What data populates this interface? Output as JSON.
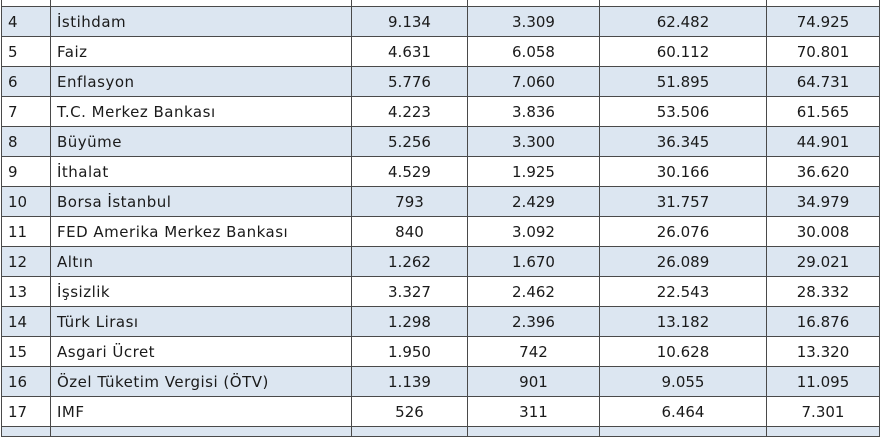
{
  "table": {
    "rows": [
      {
        "rank": "4",
        "topic": "İstihdam",
        "c1": "9.134",
        "c2": "3.309",
        "c3": "62.482",
        "c4": "74.925"
      },
      {
        "rank": "5",
        "topic": "Faiz",
        "c1": "4.631",
        "c2": "6.058",
        "c3": "60.112",
        "c4": "70.801"
      },
      {
        "rank": "6",
        "topic": "Enflasyon",
        "c1": "5.776",
        "c2": "7.060",
        "c3": "51.895",
        "c4": "64.731"
      },
      {
        "rank": "7",
        "topic": "T.C. Merkez Bankası",
        "c1": "4.223",
        "c2": "3.836",
        "c3": "53.506",
        "c4": "61.565"
      },
      {
        "rank": "8",
        "topic": "Büyüme",
        "c1": "5.256",
        "c2": "3.300",
        "c3": "36.345",
        "c4": "44.901"
      },
      {
        "rank": "9",
        "topic": "İthalat",
        "c1": "4.529",
        "c2": "1.925",
        "c3": "30.166",
        "c4": "36.620"
      },
      {
        "rank": "10",
        "topic": "Borsa İstanbul",
        "c1": "793",
        "c2": "2.429",
        "c3": "31.757",
        "c4": "34.979"
      },
      {
        "rank": "11",
        "topic": "FED Amerika Merkez Bankası",
        "c1": "840",
        "c2": "3.092",
        "c3": "26.076",
        "c4": "30.008"
      },
      {
        "rank": "12",
        "topic": "Altın",
        "c1": "1.262",
        "c2": "1.670",
        "c3": "26.089",
        "c4": "29.021"
      },
      {
        "rank": "13",
        "topic": "İşsizlik",
        "c1": "3.327",
        "c2": "2.462",
        "c3": "22.543",
        "c4": "28.332"
      },
      {
        "rank": "14",
        "topic": "Türk Lirası",
        "c1": "1.298",
        "c2": "2.396",
        "c3": "13.182",
        "c4": "16.876"
      },
      {
        "rank": "15",
        "topic": "Asgari Ücret",
        "c1": "1.950",
        "c2": "742",
        "c3": "10.628",
        "c4": "13.320"
      },
      {
        "rank": "16",
        "topic": "Özel Tüketim Vergisi (ÖTV)",
        "c1": "1.139",
        "c2": "901",
        "c3": "9.055",
        "c4": "11.095"
      },
      {
        "rank": "17",
        "topic": "IMF",
        "c1": "526",
        "c2": "311",
        "c3": "6.464",
        "c4": "7.301"
      }
    ]
  },
  "colors": {
    "band": "#dce6f1",
    "plain": "#ffffff",
    "grid_line": "#4a4a4a",
    "text": "#1a1a1a"
  }
}
